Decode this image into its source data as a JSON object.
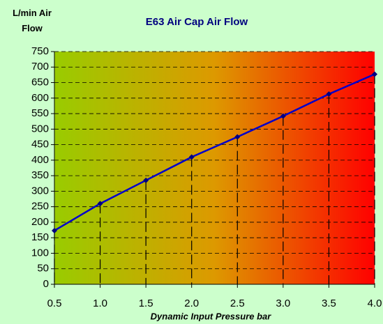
{
  "chart_data": {
    "type": "line",
    "title": "E63 Air Cap Air Flow",
    "ylabel": "L/min Air Flow",
    "xlabel": "Dynamic Input Pressure bar",
    "x": [
      0.5,
      1.0,
      1.5,
      2.0,
      2.5,
      3.0,
      3.5,
      4.0
    ],
    "series": [
      {
        "name": "Air Flow",
        "color": "#0000cc",
        "values": [
          173,
          260,
          335,
          410,
          475,
          542,
          613,
          677
        ]
      }
    ],
    "xlim": [
      0.5,
      4.0
    ],
    "xticks": [
      0.5,
      {
        "value": 1,
        "label": "1.0"
      },
      1.5,
      {
        "value": 2,
        "label": "2.0"
      },
      2.5,
      {
        "value": 3,
        "label": "3.0"
      },
      3.5,
      {
        "value": 4,
        "label": "4.0"
      }
    ],
    "ylim": [
      0,
      750
    ],
    "yticks": [
      0,
      50,
      100,
      150,
      200,
      250,
      300,
      350,
      400,
      450,
      500,
      550,
      600,
      650,
      700,
      750
    ],
    "grid": true
  }
}
